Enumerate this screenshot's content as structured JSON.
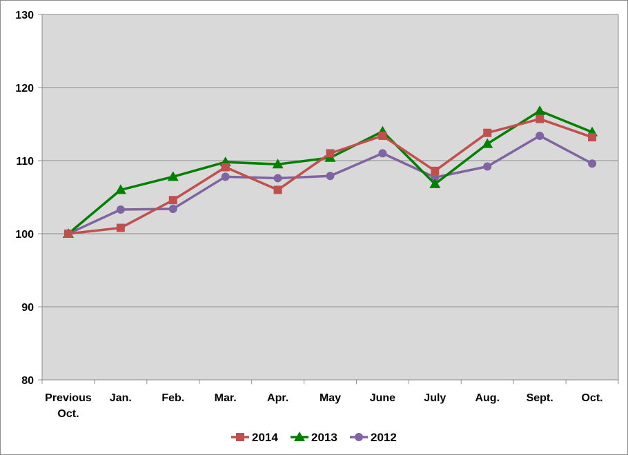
{
  "chart_data": {
    "type": "line",
    "title": "",
    "xlabel": "",
    "ylabel": "",
    "categories": [
      [
        "Previous",
        "Oct."
      ],
      [
        "Jan."
      ],
      [
        "Feb."
      ],
      [
        "Mar."
      ],
      [
        "Apr."
      ],
      [
        "May"
      ],
      [
        "June"
      ],
      [
        "July"
      ],
      [
        "Aug."
      ],
      [
        "Sept."
      ],
      [
        "Oct."
      ]
    ],
    "ylim": [
      80,
      130
    ],
    "yticks": [
      80,
      90,
      100,
      110,
      120,
      130
    ],
    "grid": "horizontal",
    "legend_position": "bottom",
    "series": [
      {
        "name": "2014",
        "color": "#c0504d",
        "marker": "square",
        "values": [
          100,
          100.8,
          104.6,
          109.1,
          106.0,
          111.0,
          113.4,
          108.6,
          113.8,
          115.7,
          113.2
        ]
      },
      {
        "name": "2013",
        "color": "#008000",
        "marker": "triangle",
        "values": [
          100,
          106.0,
          107.8,
          109.8,
          109.5,
          110.4,
          114.0,
          106.8,
          112.3,
          116.8,
          113.9
        ]
      },
      {
        "name": "2012",
        "color": "#8064a2",
        "marker": "circle",
        "values": [
          100,
          103.3,
          103.4,
          107.8,
          107.6,
          107.9,
          111.0,
          107.7,
          109.2,
          113.4,
          109.6
        ]
      }
    ]
  }
}
